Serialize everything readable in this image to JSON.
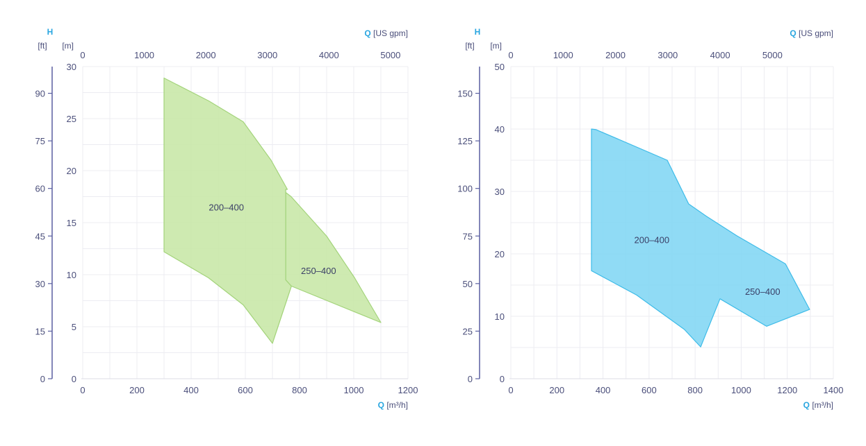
{
  "chart_data": [
    {
      "type": "area",
      "title": "",
      "ylabel": "H",
      "ylabel_units_left": "[ft]",
      "ylabel_units_right": "[m]",
      "xlabel": "Q",
      "xlabel_units": "[m³/h]",
      "x2label": "Q",
      "x2label_units": "[US gpm]",
      "xlim": [
        0,
        1200
      ],
      "ylim": [
        0,
        30
      ],
      "x_ticks": [
        0,
        200,
        400,
        600,
        800,
        1000,
        1200
      ],
      "y_ticks": [
        0,
        5,
        10,
        15,
        20,
        25,
        30
      ],
      "ft_ticks": [
        0,
        15,
        30,
        45,
        60,
        75,
        90
      ],
      "gpm_ticks": [
        0,
        1000,
        2000,
        3000,
        4000,
        5000
      ],
      "x_grid_step": 100,
      "y_grid_step": 2.5,
      "color_fill": "#c9e8a9",
      "color_stroke": "#a3d37a",
      "series": [
        {
          "name": "200–400",
          "label_at": [
            530,
            16.5
          ],
          "points": [
            [
              300,
              28.9
            ],
            [
              465,
              26.7
            ],
            [
              592,
              24.7
            ],
            [
              695,
              21
            ],
            [
              755,
              18.2
            ],
            [
              749,
              18.2
            ],
            [
              749,
              9.5
            ],
            [
              770,
              8.9
            ],
            [
              700,
              3.4
            ],
            [
              592,
              7.1
            ],
            [
              464,
              9.7
            ],
            [
              300,
              12.2
            ]
          ]
        },
        {
          "name": "250–400",
          "label_at": [
            870,
            10.4
          ],
          "points": [
            [
              749,
              17.9
            ],
            [
              769,
              17.5
            ],
            [
              900,
              13.7
            ],
            [
              1003,
              9.7
            ],
            [
              1100,
              5.4
            ],
            [
              770,
              8.9
            ],
            [
              749,
              9.5
            ]
          ]
        }
      ]
    },
    {
      "type": "area",
      "title": "",
      "ylabel": "H",
      "ylabel_units_left": "[ft]",
      "ylabel_units_right": "[m]",
      "xlabel": "Q",
      "xlabel_units": "[m³/h]",
      "x2label": "Q",
      "x2label_units": "[US gpm]",
      "xlim": [
        0,
        1400
      ],
      "ylim": [
        0,
        50
      ],
      "x_ticks": [
        0,
        200,
        400,
        600,
        800,
        1000,
        1200,
        1400
      ],
      "y_ticks": [
        0,
        10,
        20,
        30,
        40,
        50
      ],
      "ft_ticks": [
        0,
        25,
        50,
        75,
        100,
        125,
        150
      ],
      "gpm_ticks": [
        0,
        1000,
        2000,
        3000,
        4000,
        5000
      ],
      "x_grid_step": 100,
      "y_grid_step": 5,
      "color_fill": "#84d7f4",
      "color_stroke": "#3dbbe8",
      "series": [
        {
          "name": "200–400",
          "label_at": [
            612,
            22.3
          ],
          "points": [
            [
              350,
              40
            ],
            [
              370,
              39.9
            ],
            [
              679,
              35
            ],
            [
              772,
              28
            ],
            [
              850,
              26
            ],
            [
              981,
              22.9
            ],
            [
              1192,
              18.4
            ],
            [
              1297,
              11.1
            ],
            [
              1110,
              8.4
            ],
            [
              908,
              12.8
            ],
            [
              824,
              5.1
            ],
            [
              753,
              7.9
            ],
            [
              546,
              13.4
            ],
            [
              350,
              17.3
            ]
          ]
        },
        {
          "name": "250–400",
          "label_at": [
            1093,
            14
          ],
          "points": []
        }
      ]
    }
  ]
}
